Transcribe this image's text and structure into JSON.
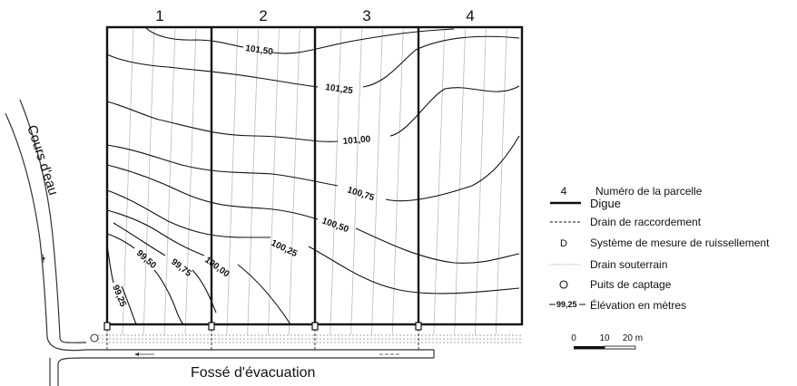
{
  "plots": [
    {
      "number": "1"
    },
    {
      "number": "2"
    },
    {
      "number": "3"
    },
    {
      "number": "4"
    }
  ],
  "contours": [
    {
      "label": "101,50"
    },
    {
      "label": "101,25"
    },
    {
      "label": "101,00"
    },
    {
      "label": "100,75"
    },
    {
      "label": "100,50"
    },
    {
      "label": "100,25"
    },
    {
      "label": "100,00"
    },
    {
      "label": "99,75"
    },
    {
      "label": "99,50"
    },
    {
      "label": "99,25"
    }
  ],
  "stream_label": "Cours d'eau",
  "ditch_label": "Fossé d'évacuation",
  "legend": {
    "plot_number_symbol": "4",
    "plot_number": "Numéro de la parcelle",
    "dike": "Digue",
    "connection_drain": "Drain de raccordement",
    "runoff_symbol": "D",
    "runoff_system": "Système de mesure de ruissellement",
    "subsurface_drain": "Drain souterrain",
    "well": "Puits de captage",
    "elevation_symbol": "99,25",
    "elevation": "Élévation en mètres"
  },
  "scale": {
    "ticks": [
      "0",
      "10",
      "20 m"
    ]
  }
}
